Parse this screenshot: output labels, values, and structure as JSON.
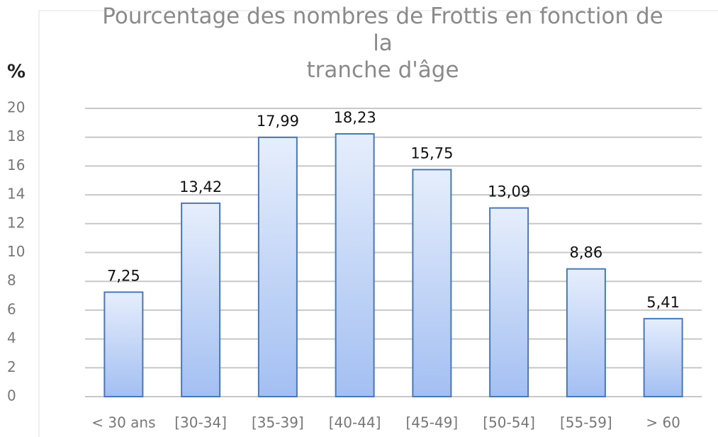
{
  "chart_data": {
    "type": "bar",
    "title": "Pourcentage des nombres de Frottis en fonction de la\ntranche d'âge",
    "y_label": "%",
    "categories": [
      "< 30 ans",
      "[30-34]",
      "[35-39]",
      "[40-44]",
      "[45-49]",
      "[50-54]",
      "[55-59]",
      "> 60"
    ],
    "values": [
      7.25,
      13.42,
      17.99,
      18.23,
      15.75,
      13.09,
      8.86,
      5.41
    ],
    "value_labels": [
      "7,25",
      "13,42",
      "17,99",
      "18,23",
      "15,75",
      "13,09",
      "8,86",
      "5,41"
    ],
    "color": "#4a78b5",
    "ylim": [
      0,
      20
    ],
    "yticks": [
      0,
      2,
      4,
      6,
      8,
      10,
      12,
      14,
      16,
      18,
      20
    ],
    "grid": true
  }
}
